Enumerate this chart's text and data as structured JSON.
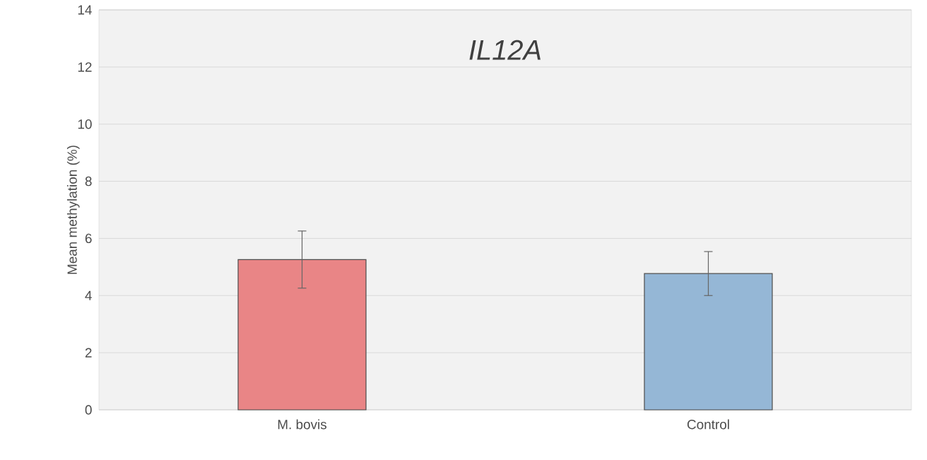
{
  "chart_data": {
    "type": "bar",
    "title": "IL12A",
    "ylabel": "Mean methylation (%)",
    "categories": [
      "M. bovis",
      "Control"
    ],
    "values": [
      5.26,
      4.77
    ],
    "colors": [
      "#e98586",
      "#95b7d6"
    ],
    "errors": [
      1.0,
      0.77
    ],
    "ylim": [
      0,
      14
    ],
    "yticks": [
      0,
      2,
      4,
      6,
      8,
      10,
      12,
      14
    ],
    "grid": "y"
  }
}
